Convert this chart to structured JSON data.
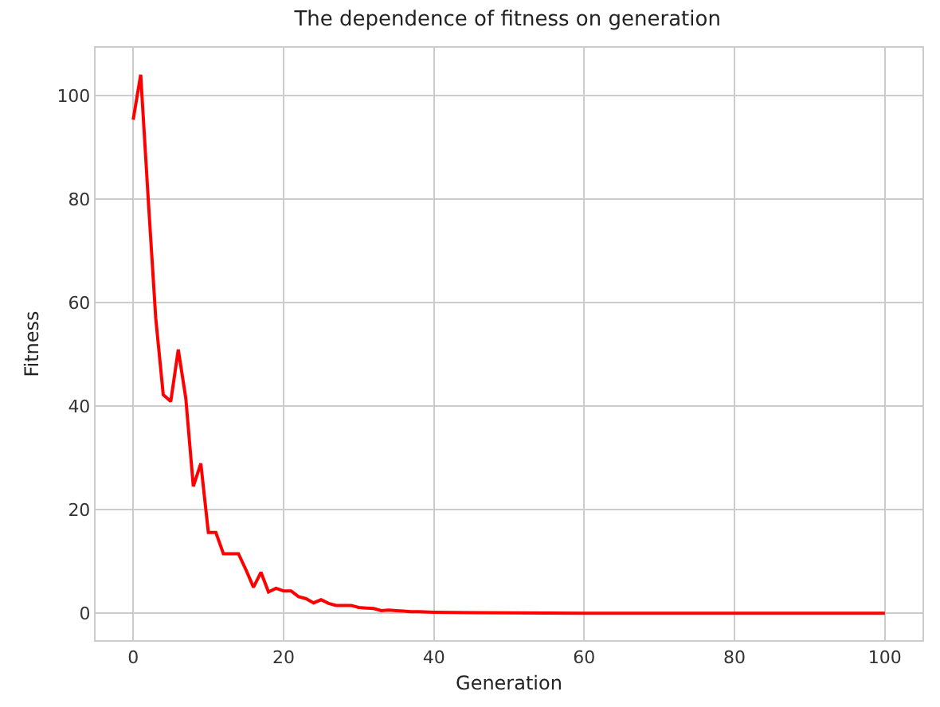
{
  "chart_data": {
    "type": "line",
    "title": "The dependence of fitness on generation",
    "xlabel": "Generation",
    "ylabel": "Fitness",
    "x": [
      0,
      1,
      2,
      3,
      4,
      5,
      6,
      7,
      8,
      9,
      10,
      11,
      12,
      13,
      14,
      15,
      16,
      17,
      18,
      19,
      20,
      21,
      22,
      23,
      24,
      25,
      26,
      27,
      28,
      29,
      30,
      31,
      32,
      33,
      34,
      35,
      36,
      37,
      38,
      40,
      45,
      50,
      60,
      70,
      80,
      90,
      100
    ],
    "series": [
      {
        "color": "#ff0000",
        "values": [
          95.3,
          104,
          80,
          57,
          42.2,
          40.9,
          50.9,
          41.5,
          24.5,
          28.9,
          15.6,
          15.6,
          11.5,
          11.5,
          11.5,
          8.4,
          5.0,
          7.9,
          4.1,
          4.8,
          4.3,
          4.3,
          3.2,
          2.8,
          2.0,
          2.6,
          1.9,
          1.5,
          1.5,
          1.5,
          1.1,
          1.0,
          0.9,
          0.5,
          0.6,
          0.5,
          0.4,
          0.3,
          0.3,
          0.2,
          0.1,
          0.05,
          0,
          0,
          0,
          0,
          0
        ]
      }
    ],
    "xlim": [
      -5,
      105
    ],
    "ylim": [
      -5.2,
      109.2
    ],
    "xticks": [
      0,
      20,
      40,
      60,
      80,
      100
    ],
    "yticks": [
      0,
      20,
      40,
      60,
      80,
      100
    ],
    "grid": true,
    "marker": "none",
    "line_style": "solid"
  }
}
